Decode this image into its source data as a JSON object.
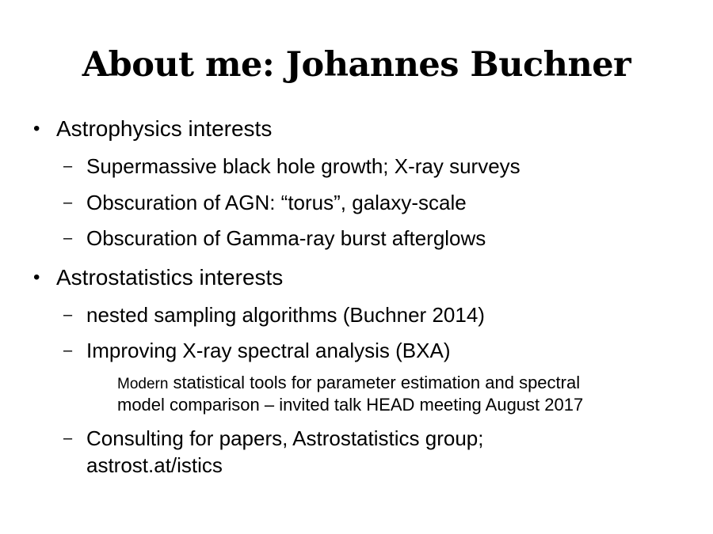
{
  "slide": {
    "title": "About me: Johannes Buchner",
    "bullet_glyph": "•",
    "dash_glyph": "–",
    "section1": {
      "heading": "Astrophysics interests",
      "items": [
        "Supermassive black hole growth; X-ray surveys",
        "Obscuration of AGN: “torus”, galaxy-scale",
        "Obscuration of Gamma-ray burst afterglows"
      ]
    },
    "section2": {
      "heading": "Astrostatistics interests",
      "items": [
        "nested sampling algorithms (Buchner 2014)",
        "Improving X-ray spectral analysis (BXA)"
      ],
      "sub_note": {
        "first_word": "Modern",
        "line1_rest": " statistical tools for parameter estimation and spectral",
        "line2": "model comparison  – invited talk HEAD meeting August 2017"
      },
      "last_item": {
        "line1": "Consulting for papers, Astrostatistics group;",
        "line2": "astrost.at/istics"
      }
    }
  }
}
